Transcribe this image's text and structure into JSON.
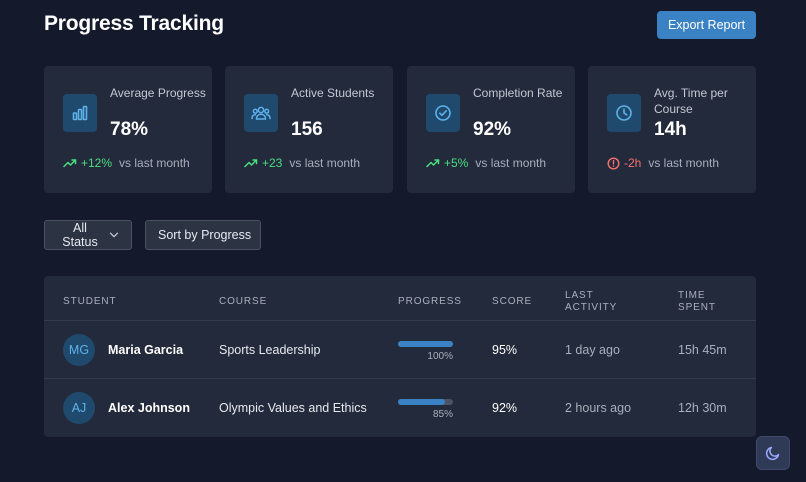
{
  "header": {
    "title": "Progress Tracking",
    "export_label": "Export Report"
  },
  "stats": [
    {
      "label": "Average Progress",
      "value": "78%",
      "change": "+12%",
      "trend": "up",
      "compare": "vs last month",
      "icon": "bar-chart-icon"
    },
    {
      "label": "Active Students",
      "value": "156",
      "change": "+23",
      "trend": "up",
      "compare": "vs last month",
      "icon": "users-icon"
    },
    {
      "label": "Completion Rate",
      "value": "92%",
      "change": "+5%",
      "trend": "up",
      "compare": "vs last month",
      "icon": "check-circle-icon"
    },
    {
      "label": "Avg. Time per Course",
      "value": "14h",
      "change": "-2h",
      "trend": "down",
      "compare": "vs last month",
      "icon": "clock-icon"
    }
  ],
  "filters": {
    "status_label": "All Status",
    "sort_label": "Sort by Progress"
  },
  "table": {
    "headers": {
      "student": "STUDENT",
      "course": "COURSE",
      "progress": "PROGRESS",
      "score": "SCORE",
      "last_activity": "LAST ACTIVITY",
      "time_spent": "TIME SPENT"
    },
    "rows": [
      {
        "initials": "MG",
        "name": "Maria Garcia",
        "course": "Sports Leadership",
        "progress": 100,
        "progress_label": "100%",
        "score": "95%",
        "last_activity": "1 day ago",
        "time_spent": "15h 45m"
      },
      {
        "initials": "AJ",
        "name": "Alex Johnson",
        "course": "Olympic Values and Ethics",
        "progress": 85,
        "progress_label": "85%",
        "score": "92%",
        "last_activity": "2 hours ago",
        "time_spent": "12h 30m"
      }
    ]
  },
  "colors": {
    "accent": "#3b82c4",
    "positive": "#4ade80",
    "negative": "#f87171",
    "background": "#141a2c",
    "card": "#232a3b"
  },
  "theme_toggle_icon": "moon-icon"
}
